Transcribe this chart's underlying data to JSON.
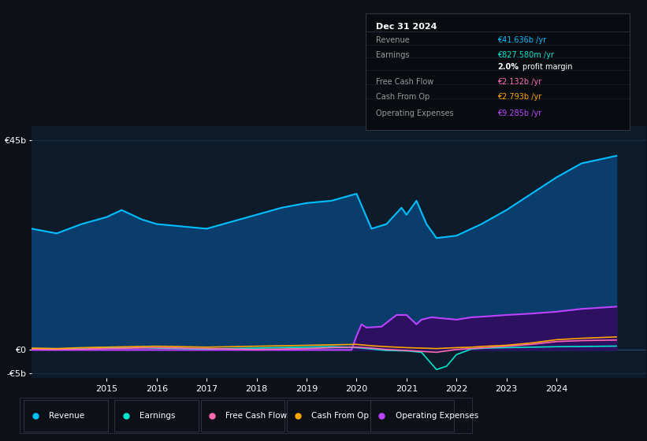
{
  "background_color": "#0d1117",
  "chart_bg_color": "#0d1b2a",
  "grid_color": "#1e3a5f",
  "ylim": [
    -6000000000,
    48000000000
  ],
  "xlim": [
    2013.5,
    2025.8
  ],
  "yticks": [
    -5000000000,
    0,
    45000000000
  ],
  "ytick_labels": [
    "-€5b",
    "€0",
    "€45b"
  ],
  "xticks": [
    2015,
    2016,
    2017,
    2018,
    2019,
    2020,
    2021,
    2022,
    2023,
    2024
  ],
  "revenue_color": "#00bfff",
  "revenue_fill": "#0a3d6b",
  "earnings_color": "#00e5cc",
  "fcf_color": "#ff69b4",
  "cashfromop_color": "#ffa500",
  "opex_color": "#bb44ff",
  "opex_fill": "#2d1060",
  "revenue": [
    [
      2013.5,
      26000000000
    ],
    [
      2014.0,
      25000000000
    ],
    [
      2014.5,
      27000000000
    ],
    [
      2015.0,
      28500000000
    ],
    [
      2015.3,
      30000000000
    ],
    [
      2015.7,
      28000000000
    ],
    [
      2016.0,
      27000000000
    ],
    [
      2016.5,
      26500000000
    ],
    [
      2017.0,
      26000000000
    ],
    [
      2017.5,
      27500000000
    ],
    [
      2018.0,
      29000000000
    ],
    [
      2018.5,
      30500000000
    ],
    [
      2019.0,
      31500000000
    ],
    [
      2019.5,
      32000000000
    ],
    [
      2020.0,
      33500000000
    ],
    [
      2020.3,
      26000000000
    ],
    [
      2020.6,
      27000000000
    ],
    [
      2020.9,
      30500000000
    ],
    [
      2021.0,
      29000000000
    ],
    [
      2021.2,
      32000000000
    ],
    [
      2021.4,
      27000000000
    ],
    [
      2021.6,
      24000000000
    ],
    [
      2022.0,
      24500000000
    ],
    [
      2022.5,
      27000000000
    ],
    [
      2023.0,
      30000000000
    ],
    [
      2023.5,
      33500000000
    ],
    [
      2024.0,
      37000000000
    ],
    [
      2024.5,
      40000000000
    ],
    [
      2025.2,
      41636000000
    ]
  ],
  "earnings": [
    [
      2013.5,
      300000000
    ],
    [
      2014.0,
      200000000
    ],
    [
      2014.5,
      400000000
    ],
    [
      2015.0,
      500000000
    ],
    [
      2015.5,
      600000000
    ],
    [
      2016.0,
      400000000
    ],
    [
      2016.5,
      300000000
    ],
    [
      2017.0,
      200000000
    ],
    [
      2017.5,
      300000000
    ],
    [
      2018.0,
      400000000
    ],
    [
      2018.5,
      500000000
    ],
    [
      2019.0,
      600000000
    ],
    [
      2019.5,
      700000000
    ],
    [
      2020.0,
      500000000
    ],
    [
      2020.3,
      200000000
    ],
    [
      2020.6,
      -100000000
    ],
    [
      2021.0,
      -200000000
    ],
    [
      2021.3,
      -500000000
    ],
    [
      2021.6,
      -4200000000
    ],
    [
      2021.8,
      -3500000000
    ],
    [
      2022.0,
      -1000000000
    ],
    [
      2022.3,
      200000000
    ],
    [
      2022.6,
      400000000
    ],
    [
      2023.0,
      500000000
    ],
    [
      2023.5,
      600000000
    ],
    [
      2024.0,
      700000000
    ],
    [
      2024.5,
      750000000
    ],
    [
      2025.2,
      827580000
    ]
  ],
  "fcf": [
    [
      2013.5,
      200000000
    ],
    [
      2014.0,
      100000000
    ],
    [
      2014.5,
      200000000
    ],
    [
      2015.0,
      300000000
    ],
    [
      2015.5,
      400000000
    ],
    [
      2016.0,
      500000000
    ],
    [
      2016.5,
      400000000
    ],
    [
      2017.0,
      300000000
    ],
    [
      2017.5,
      200000000
    ],
    [
      2018.0,
      100000000
    ],
    [
      2018.5,
      200000000
    ],
    [
      2019.0,
      300000000
    ],
    [
      2019.5,
      500000000
    ],
    [
      2020.0,
      600000000
    ],
    [
      2020.3,
      400000000
    ],
    [
      2020.6,
      100000000
    ],
    [
      2021.0,
      -100000000
    ],
    [
      2021.3,
      -300000000
    ],
    [
      2021.6,
      -500000000
    ],
    [
      2021.8,
      -200000000
    ],
    [
      2022.0,
      100000000
    ],
    [
      2022.3,
      300000000
    ],
    [
      2022.6,
      500000000
    ],
    [
      2023.0,
      800000000
    ],
    [
      2023.5,
      1200000000
    ],
    [
      2024.0,
      1800000000
    ],
    [
      2024.5,
      2000000000
    ],
    [
      2025.2,
      2132000000
    ]
  ],
  "cashfromop": [
    [
      2013.5,
      400000000
    ],
    [
      2014.0,
      300000000
    ],
    [
      2014.5,
      500000000
    ],
    [
      2015.0,
      600000000
    ],
    [
      2015.5,
      700000000
    ],
    [
      2016.0,
      800000000
    ],
    [
      2016.5,
      700000000
    ],
    [
      2017.0,
      600000000
    ],
    [
      2017.5,
      700000000
    ],
    [
      2018.0,
      800000000
    ],
    [
      2018.5,
      900000000
    ],
    [
      2019.0,
      1000000000
    ],
    [
      2019.5,
      1100000000
    ],
    [
      2020.0,
      1200000000
    ],
    [
      2020.3,
      900000000
    ],
    [
      2020.6,
      700000000
    ],
    [
      2021.0,
      500000000
    ],
    [
      2021.3,
      400000000
    ],
    [
      2021.6,
      300000000
    ],
    [
      2021.8,
      400000000
    ],
    [
      2022.0,
      500000000
    ],
    [
      2022.3,
      600000000
    ],
    [
      2022.6,
      800000000
    ],
    [
      2023.0,
      1000000000
    ],
    [
      2023.5,
      1500000000
    ],
    [
      2024.0,
      2200000000
    ],
    [
      2024.5,
      2500000000
    ],
    [
      2025.2,
      2793000000
    ]
  ],
  "opex": [
    [
      2013.5,
      0
    ],
    [
      2019.9,
      0
    ],
    [
      2020.0,
      3000000000
    ],
    [
      2020.1,
      5500000000
    ],
    [
      2020.2,
      4800000000
    ],
    [
      2020.5,
      5000000000
    ],
    [
      2020.8,
      7500000000
    ],
    [
      2021.0,
      7500000000
    ],
    [
      2021.2,
      5500000000
    ],
    [
      2021.3,
      6500000000
    ],
    [
      2021.5,
      7000000000
    ],
    [
      2022.0,
      6500000000
    ],
    [
      2022.3,
      7000000000
    ],
    [
      2022.6,
      7200000000
    ],
    [
      2023.0,
      7500000000
    ],
    [
      2023.5,
      7800000000
    ],
    [
      2024.0,
      8200000000
    ],
    [
      2024.5,
      8800000000
    ],
    [
      2025.2,
      9285000000
    ]
  ],
  "info_box": {
    "title": "Dec 31 2024",
    "rows": [
      {
        "label": "Revenue",
        "value": "€41.636b /yr",
        "value_color": "#00bfff"
      },
      {
        "label": "Earnings",
        "value": "€827.580m /yr",
        "value_color": "#00e5cc"
      },
      {
        "label": "",
        "value": "2.0% profit margin",
        "value_color": "#ffffff",
        "bold_prefix": "2.0%"
      },
      {
        "label": "Free Cash Flow",
        "value": "€2.132b /yr",
        "value_color": "#ff69b4"
      },
      {
        "label": "Cash From Op",
        "value": "€2.793b /yr",
        "value_color": "#ffa500"
      },
      {
        "label": "Operating Expenses",
        "value": "€9.285b /yr",
        "value_color": "#bb44ff"
      }
    ]
  },
  "legend_items": [
    {
      "label": "Revenue",
      "color": "#00bfff"
    },
    {
      "label": "Earnings",
      "color": "#00e5cc"
    },
    {
      "label": "Free Cash Flow",
      "color": "#ff69b4"
    },
    {
      "label": "Cash From Op",
      "color": "#ffa500"
    },
    {
      "label": "Operating Expenses",
      "color": "#bb44ff"
    }
  ]
}
